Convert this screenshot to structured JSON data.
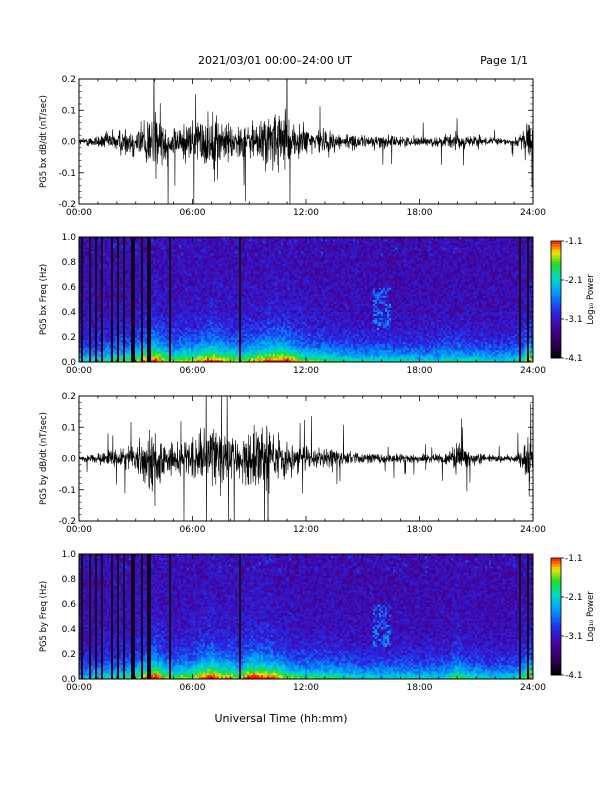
{
  "header": {
    "date_range": "2021/03/01  00:00–24:00 UT",
    "page": "Page 1/1"
  },
  "xlabel": "Universal Time (hh:mm)",
  "chart_data": [
    {
      "type": "line",
      "ylabel": "PG5 bx dB/dt (nT/sec)",
      "xlim": [
        0,
        24
      ],
      "ylim": [
        -0.2,
        0.2
      ],
      "x_ticks": [
        "00:00",
        "06:00",
        "12:00",
        "18:00",
        "24:00"
      ],
      "y_ticks": [
        "-0.2",
        "-0.1",
        "0.0",
        "0.1",
        "0.2"
      ],
      "envelope_hours": [
        0,
        1,
        2,
        3,
        3.5,
        4,
        4.5,
        5,
        5.5,
        6,
        6.5,
        7,
        7.5,
        8,
        8.5,
        9,
        9.5,
        10,
        10.5,
        11,
        11.5,
        12,
        12.5,
        13,
        13.5,
        14,
        15,
        16,
        17,
        18,
        18.5,
        19,
        19.5,
        20,
        20.5,
        21,
        21.5,
        22,
        22.5,
        23,
        23.5,
        23.8,
        24
      ],
      "envelope_amplitude": [
        0.02,
        0.04,
        0.07,
        0.1,
        0.15,
        0.2,
        0.12,
        0.09,
        0.12,
        0.11,
        0.15,
        0.18,
        0.14,
        0.12,
        0.09,
        0.12,
        0.14,
        0.17,
        0.18,
        0.18,
        0.12,
        0.09,
        0.08,
        0.07,
        0.06,
        0.05,
        0.035,
        0.04,
        0.03,
        0.03,
        0.025,
        0.03,
        0.045,
        0.05,
        0.035,
        0.04,
        0.025,
        0.02,
        0.02,
        0.025,
        0.06,
        0.2,
        0.05
      ]
    },
    {
      "type": "heatmap",
      "ylabel": "PG5 bx Freq (Hz)",
      "xlim": [
        0,
        24
      ],
      "ylim": [
        0,
        1.0
      ],
      "x_ticks": [
        "00:00",
        "06:00",
        "12:00",
        "18:00",
        "24:00"
      ],
      "y_ticks": [
        "0.0",
        "0.2",
        "0.4",
        "0.6",
        "0.8",
        "1.0"
      ],
      "colorbar_label": "Log₁₀ Power",
      "colorbar_ticks": [
        "-1.1",
        "-2.1",
        "-3.1",
        "-4.1"
      ],
      "colorbar_range": [
        -4.1,
        -1.1
      ],
      "dark_gaps_hours": [
        0.2,
        0.55,
        0.9,
        1.25,
        1.7,
        2.05,
        2.4,
        2.85,
        3.3,
        3.7,
        4.8,
        8.5,
        23.3,
        23.75
      ]
    },
    {
      "type": "line",
      "ylabel": "PG5 by dB/dt (nT/sec)",
      "xlim": [
        0,
        24
      ],
      "ylim": [
        -0.2,
        0.2
      ],
      "x_ticks": [
        "00:00",
        "06:00",
        "12:00",
        "18:00",
        "24:00"
      ],
      "y_ticks": [
        "-0.2",
        "-0.1",
        "0.0",
        "0.1",
        "0.2"
      ],
      "envelope_hours": [
        0,
        1,
        2,
        3,
        3.5,
        4,
        4.5,
        5,
        5.5,
        6,
        6.5,
        7,
        7.5,
        8,
        8.5,
        9,
        9.5,
        10,
        10.5,
        11,
        11.5,
        12,
        12.5,
        13,
        13.5,
        14,
        15,
        16,
        17,
        18,
        18.5,
        19,
        19.5,
        20,
        20.5,
        21,
        21.5,
        22,
        22.5,
        23,
        23.5,
        23.8,
        24
      ],
      "envelope_amplitude": [
        0.015,
        0.03,
        0.05,
        0.08,
        0.14,
        0.2,
        0.12,
        0.08,
        0.1,
        0.11,
        0.16,
        0.2,
        0.15,
        0.14,
        0.1,
        0.2,
        0.2,
        0.17,
        0.15,
        0.1,
        0.08,
        0.07,
        0.07,
        0.07,
        0.06,
        0.05,
        0.03,
        0.03,
        0.03,
        0.025,
        0.025,
        0.03,
        0.04,
        0.1,
        0.05,
        0.04,
        0.03,
        0.02,
        0.02,
        0.025,
        0.06,
        0.2,
        0.05
      ]
    },
    {
      "type": "heatmap",
      "ylabel": "PG5 by Freq (Hz)",
      "xlim": [
        0,
        24
      ],
      "ylim": [
        0,
        1.0
      ],
      "x_ticks": [
        "00:00",
        "06:00",
        "12:00",
        "18:00",
        "24:00"
      ],
      "y_ticks": [
        "0.0",
        "0.2",
        "0.4",
        "0.6",
        "0.8",
        "1.0"
      ],
      "colorbar_label": "Log₁₀ Power",
      "colorbar_ticks": [
        "-1.1",
        "-2.1",
        "-3.1",
        "-4.1"
      ],
      "colorbar_range": [
        -4.1,
        -1.1
      ],
      "dark_gaps_hours": [
        0.2,
        0.55,
        0.9,
        1.25,
        1.7,
        2.05,
        2.4,
        2.85,
        3.3,
        3.7,
        4.8,
        8.5,
        23.3,
        23.75
      ]
    }
  ]
}
